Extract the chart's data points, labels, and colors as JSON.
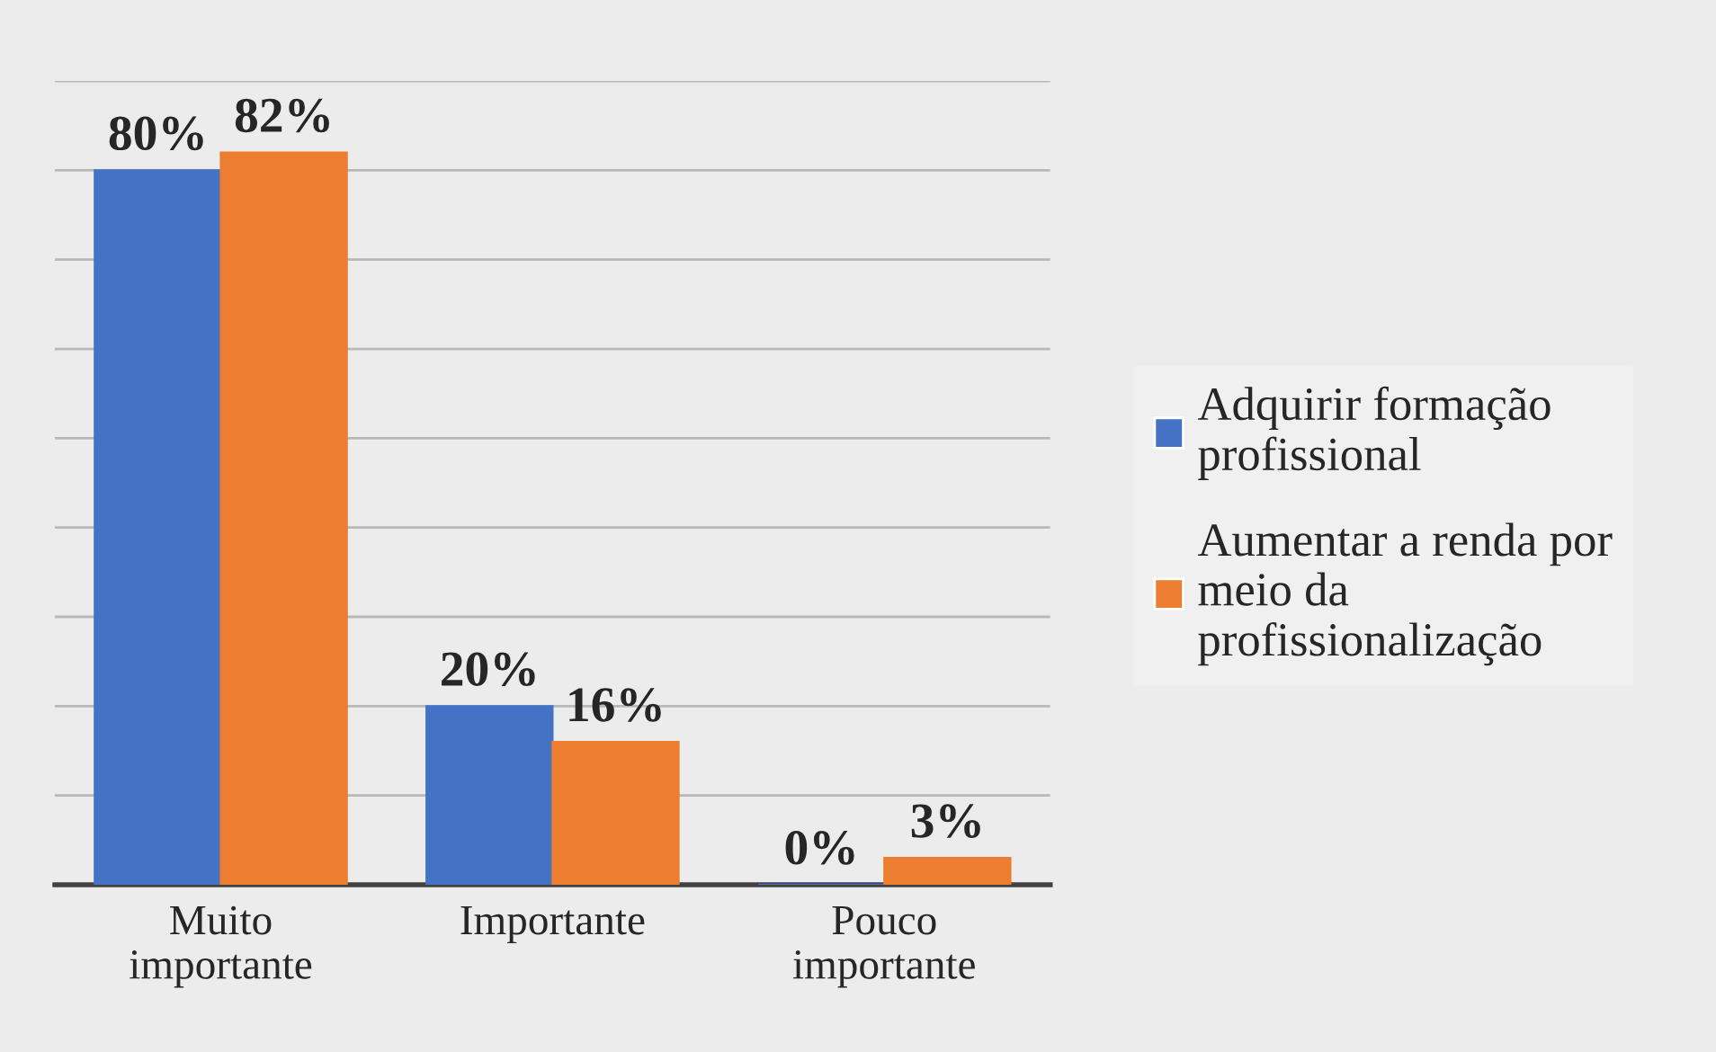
{
  "chart_data": {
    "type": "bar",
    "categories": [
      "Muito\nimportante",
      "Importante",
      "Pouco\nimportante"
    ],
    "series": [
      {
        "name": "Adquirir formação\nprofissional",
        "color": "#4472c4",
        "values": [
          80,
          20,
          0
        ],
        "value_labels": [
          "80%",
          "20%",
          "0%"
        ]
      },
      {
        "name": "Aumentar a renda por\nmeio da\nprofissionalização",
        "color": "#ed7d31",
        "values": [
          82,
          16,
          3
        ],
        "value_labels": [
          "82%",
          "16%",
          "3%"
        ]
      }
    ],
    "ylim": [
      0,
      90
    ],
    "yticks": [
      {
        "value": 0,
        "label": null
      },
      {
        "value": 10,
        "label": null
      },
      {
        "value": 20,
        "label": null
      },
      {
        "value": 30,
        "label": null
      },
      {
        "value": 40,
        "label": null
      },
      {
        "value": 50,
        "label": null
      },
      {
        "value": 60,
        "label": null
      },
      {
        "value": 70,
        "label": null
      },
      {
        "value": 80,
        "label": null
      },
      {
        "value": 90,
        "label": null
      }
    ],
    "tick_labels": "x",
    "grid": "y",
    "legend": "right"
  }
}
